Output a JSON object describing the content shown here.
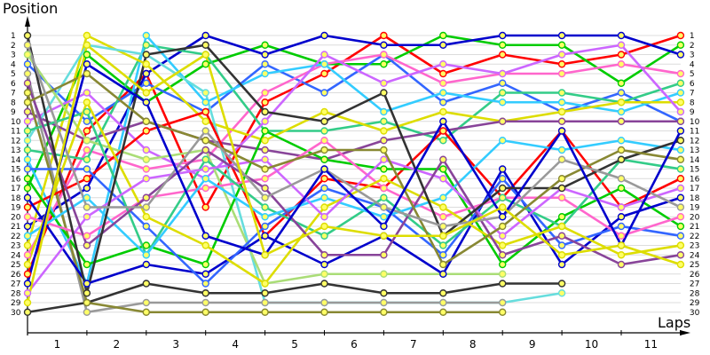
{
  "chart_data": {
    "type": "line",
    "ylabel": "Position",
    "xlabel": "Laps",
    "x": [
      0,
      1,
      2,
      3,
      4,
      5,
      6,
      7,
      8,
      9,
      10,
      11
    ],
    "lap_labels": [
      "1",
      "2",
      "3",
      "4",
      "5",
      "6",
      "7",
      "8",
      "9",
      "10",
      "11"
    ],
    "positions": [
      1,
      2,
      3,
      4,
      5,
      6,
      7,
      8,
      9,
      10,
      11,
      12,
      13,
      14,
      15,
      16,
      17,
      18,
      19,
      20,
      21,
      22,
      23,
      24,
      25,
      26,
      27,
      28,
      29,
      30
    ],
    "ylim": [
      1,
      30
    ],
    "grid": "horizontal",
    "series": [
      {
        "color": "#ff0000",
        "values": [
          26,
          11,
          5,
          19,
          8,
          5,
          1,
          5,
          3,
          4,
          3,
          1
        ]
      },
      {
        "color": "#00cc00",
        "values": [
          17,
          3,
          8,
          4,
          2,
          4,
          4,
          1,
          2,
          2,
          6,
          2
        ]
      },
      {
        "color": "#0000cc",
        "values": [
          21,
          17,
          5,
          1,
          3,
          1,
          2,
          2,
          1,
          1,
          1,
          3
        ]
      },
      {
        "color": "#3366ff",
        "values": [
          4,
          10,
          6,
          9,
          4,
          7,
          3,
          8,
          6,
          9,
          7,
          10
        ]
      },
      {
        "color": "#ff66cc",
        "values": [
          24,
          13,
          15,
          14,
          7,
          4,
          3,
          6,
          5,
          5,
          4,
          5
        ]
      },
      {
        "color": "#33cc88",
        "values": [
          13,
          14,
          2,
          3,
          11,
          11,
          10,
          12,
          7,
          7,
          8,
          6
        ]
      },
      {
        "color": "#33ccff",
        "values": [
          14,
          27,
          1,
          8,
          5,
          4,
          9,
          7,
          8,
          8,
          9,
          7
        ]
      },
      {
        "color": "#dddd00",
        "values": [
          23,
          1,
          4,
          10,
          12,
          9,
          11,
          9,
          10,
          9,
          8,
          8
        ]
      },
      {
        "color": "#cc66ff",
        "values": [
          10,
          7,
          13,
          16,
          10,
          3,
          6,
          4,
          5,
          3,
          2,
          9
        ]
      },
      {
        "color": "#884499",
        "values": [
          9,
          12,
          10,
          12,
          13,
          14,
          12,
          11,
          10,
          10,
          10,
          10
        ]
      },
      {
        "color": "#66dddd",
        "values": [
          12,
          2,
          3,
          7,
          29,
          29,
          29,
          29,
          29,
          28,
          0,
          0
        ]
      },
      {
        "color": "#333333",
        "values": [
          30,
          29,
          27,
          28,
          28,
          27,
          28,
          28,
          27,
          27,
          0,
          0
        ]
      },
      {
        "color": "#aadd77",
        "values": [
          3,
          12,
          14,
          13,
          27,
          26,
          26,
          26,
          26,
          0,
          0,
          0
        ]
      },
      {
        "color": "#999999",
        "values": [
          5,
          30,
          29,
          29,
          29,
          29,
          29,
          29,
          29,
          0,
          0,
          0
        ]
      },
      {
        "color": "#888833",
        "values": [
          7,
          29,
          30,
          30,
          30,
          30,
          30,
          30,
          30,
          0,
          0,
          0
        ]
      },
      {
        "color": "#ff0000",
        "values": [
          19,
          16,
          11,
          9,
          22,
          16,
          17,
          11,
          18,
          11,
          19,
          16
        ]
      },
      {
        "color": "#00cc00",
        "values": [
          16,
          25,
          23,
          25,
          11,
          14,
          15,
          15,
          25,
          20,
          17,
          21
        ]
      },
      {
        "color": "#0000cc",
        "values": [
          18,
          27,
          25,
          26,
          22,
          25,
          22,
          26,
          15,
          25,
          20,
          18
        ]
      },
      {
        "color": "#3366ff",
        "values": [
          15,
          15,
          21,
          27,
          21,
          17,
          19,
          24,
          16,
          23,
          21,
          22
        ]
      },
      {
        "color": "#ff66cc",
        "values": [
          20,
          22,
          18,
          17,
          16,
          12,
          17,
          20,
          18,
          18,
          22,
          20
        ]
      },
      {
        "color": "#33cc88",
        "values": [
          11,
          9,
          24,
          14,
          19,
          22,
          18,
          23,
          18,
          21,
          14,
          15
        ]
      },
      {
        "color": "#33ccff",
        "values": [
          22,
          18,
          24,
          16,
          20,
          18,
          20,
          18,
          12,
          13,
          12,
          13
        ]
      },
      {
        "color": "#dddd00",
        "values": [
          25,
          8,
          20,
          23,
          27,
          19,
          16,
          19,
          23,
          21,
          24,
          23
        ]
      },
      {
        "color": "#cc66ff",
        "values": [
          28,
          20,
          16,
          15,
          14,
          20,
          14,
          16,
          22,
          17,
          19,
          17
        ]
      },
      {
        "color": "#884499",
        "values": [
          6,
          23,
          18,
          13,
          17,
          24,
          24,
          14,
          24,
          22,
          25,
          24
        ]
      },
      {
        "color": "#333333",
        "values": [
          1,
          28,
          3,
          2,
          9,
          10,
          7,
          22,
          17,
          17,
          14,
          12
        ]
      },
      {
        "color": "#888833",
        "values": [
          8,
          5,
          10,
          12,
          15,
          13,
          13,
          25,
          21,
          16,
          13,
          14
        ]
      },
      {
        "color": "#999999",
        "values": [
          2,
          19,
          19,
          11,
          18,
          15,
          19,
          21,
          20,
          14,
          16,
          19
        ]
      },
      {
        "color": "#0000cc",
        "values": [
          27,
          4,
          8,
          22,
          24,
          15,
          21,
          10,
          20,
          11,
          23,
          11
        ]
      },
      {
        "color": "#dddd00",
        "values": [
          29,
          2,
          7,
          3,
          24,
          21,
          22,
          22,
          19,
          24,
          23,
          25
        ]
      }
    ]
  }
}
